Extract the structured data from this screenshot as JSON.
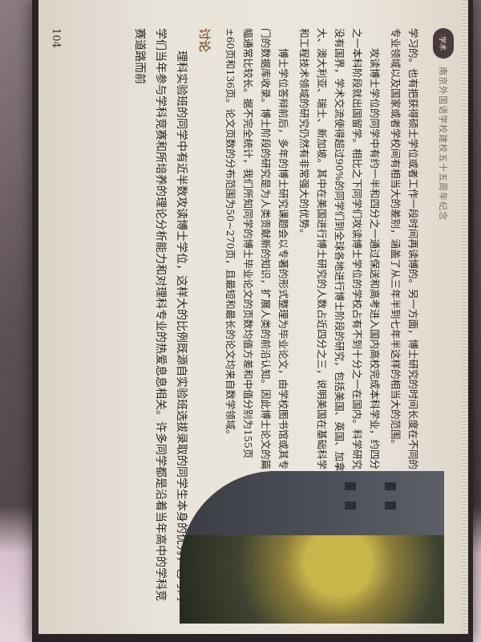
{
  "page": {
    "running_head": "南京外国语学校建校五十五周年纪念",
    "badge": "学术",
    "page_number": "104"
  },
  "body_paragraphs": [
    "学习的。也有把获得硕士学位或者工作一段时间再读博的。另一方面，博士研究的时间长度在不同的专业领域以及国家或者学校间有相当大的差别，涵盖了从三年半到七年半这样的相当大的范围。",
    "攻读博士学位的同学中有约一半和四分之一通过保送和高考进入国内高校完成本科学业，约四分之一本科阶段就出国留学。相比之下同学们攻读博士学位的学校占有不到十分之一在国内。科学研究没有国界，学术交流使得超过90%的同学们到全球各地进行博士阶段的研究，包括美国、英国、加拿大、澳大利亚、瑞士、新加坡。其中在美国进行博士研究的人数占近四分之三，说明美国在基础科学和工程技术领域的研究仍然有非常强大的优势。",
    "博士学位答辩前后，多年的博士研究课题会以专著的形式整理为毕业论文，由学校图书馆或其专门的数据库收录。博士阶段的研究是为人类贡献新的知识，扩展人类的前沿认知。因此博士论文的篇幅通常比较长。据不完全统计，我们所知同学的博士毕业论文的页数均值方差和中值分别为155页±60页和136页。论文页数的分布范围为50~270页，且最短和最长的论文均来自数学领域。"
  ],
  "discussion": {
    "heading": "讨论",
    "text": "理科实验班的同学中有近半数攻读博士学位，这样大的比例既源自实验班选拔录取的同学生本身的优秀，也与同学们当年参与学科竞赛和所培养的理论分析能力和对理科专业的热爱息息相关。许多同学都是沿着当年高中的学科竞赛道路而前"
  }
}
